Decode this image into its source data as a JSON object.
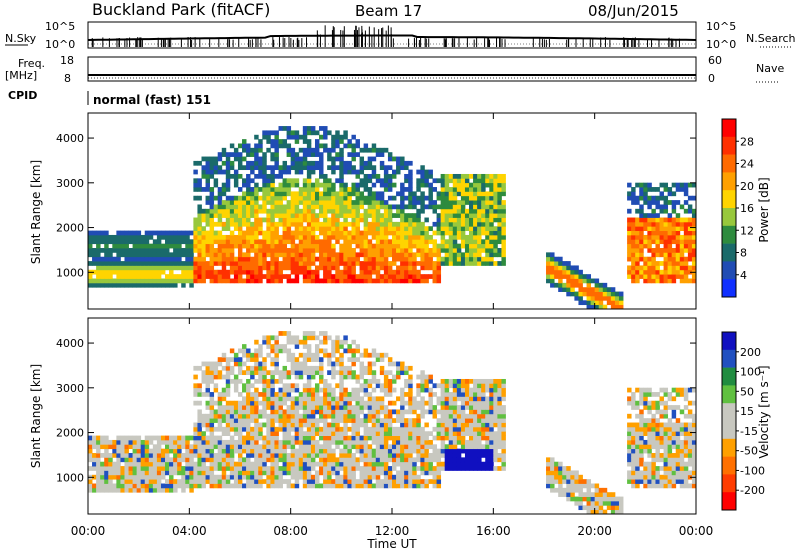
{
  "header": {
    "station": "Buckland Park (fitACF)",
    "beam": "Beam 17",
    "date": "08/Jun/2015"
  },
  "noise_panel": {
    "left_label": "N.Sky",
    "right_label": "N.Search",
    "left_ticks": [
      "10^5",
      "10^0"
    ],
    "right_ticks": [
      "10^5",
      "10^0"
    ]
  },
  "freq_panel": {
    "left_label_1": "Freq.",
    "left_label_2": "[MHz]",
    "right_label": "Nave",
    "left_ticks": [
      "18",
      "8"
    ],
    "right_ticks": [
      "60",
      "0"
    ]
  },
  "cpid": {
    "label": "CPID",
    "value": "normal (fast) 151"
  },
  "chart_data": [
    {
      "type": "heatmap",
      "name": "power",
      "ylabel": "Slant Range [km]",
      "ylim": [
        180,
        4560
      ],
      "yticks": [
        "1000",
        "2000",
        "3000",
        "4000"
      ],
      "xticks": [
        "00:00",
        "04:00",
        "08:00",
        "12:00",
        "16:00",
        "20:00",
        "00:00"
      ],
      "colorbar_label": "Power [dB]",
      "colorbar_ticks": [
        "28",
        "24",
        "20",
        "16",
        "12",
        "8",
        "4"
      ],
      "colorbar_colors": [
        "#ff0000",
        "#ff3000",
        "#ff6a00",
        "#ffa000",
        "#ffd400",
        "#98c83c",
        "#2e8b3e",
        "#1a6a6a",
        "#204cb4",
        "#1030ff"
      ]
    },
    {
      "type": "heatmap",
      "name": "velocity",
      "ylabel": "Slant Range [km]",
      "ylim": [
        180,
        4560
      ],
      "yticks": [
        "1000",
        "2000",
        "3000",
        "4000"
      ],
      "xticks": [
        "00:00",
        "04:00",
        "08:00",
        "12:00",
        "16:00",
        "20:00",
        "00:00"
      ],
      "xlabel": "Time UT",
      "colorbar_label": "Velocity [m s⁻¹]",
      "colorbar_ticks": [
        "200",
        "100",
        "50",
        "15",
        "-15",
        "-50",
        "-100",
        "-200"
      ],
      "colorbar_colors": [
        "#1010c0",
        "#2050c0",
        "#208c40",
        "#60c040",
        "#c8c8c0",
        "#c8c8c0",
        "#ffa000",
        "#ff7000",
        "#ff3c00",
        "#ff0000"
      ]
    }
  ]
}
